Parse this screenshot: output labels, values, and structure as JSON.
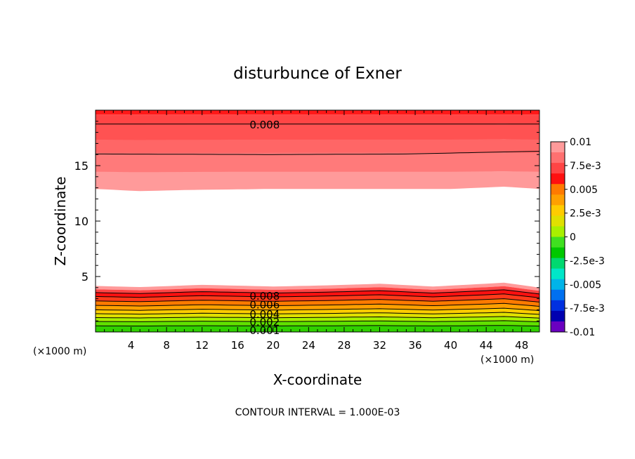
{
  "title": "disturbunce of Exner",
  "footer": "CONTOUR INTERVAL = 1.000E-03",
  "chart_data": {
    "type": "heatmap",
    "title": "disturbunce of Exner",
    "xlabel": "X-coordinate",
    "ylabel": "Z-coordinate",
    "x_unit_left": "(×1000 m)",
    "x_unit_right": "(×1000 m)",
    "xlim": [
      0,
      50
    ],
    "ylim": [
      0,
      20
    ],
    "xticks": [
      4,
      8,
      12,
      16,
      20,
      24,
      28,
      32,
      36,
      40,
      44,
      48
    ],
    "yticks": [
      5,
      10,
      15
    ],
    "contour_interval": 0.001,
    "upper_band": {
      "top_z": 19.6,
      "base_z_profile": [
        [
          0,
          12.9
        ],
        [
          5,
          12.7
        ],
        [
          10,
          12.8
        ],
        [
          20,
          12.9
        ],
        [
          30,
          12.9
        ],
        [
          40,
          12.9
        ],
        [
          46,
          13.1
        ],
        [
          50,
          12.9
        ]
      ],
      "top_value": 0.0095
    },
    "lower_band": {
      "top_z_profile": [
        [
          0,
          4.15
        ],
        [
          5,
          4.05
        ],
        [
          12,
          4.25
        ],
        [
          20,
          4.1
        ],
        [
          26,
          4.2
        ],
        [
          32,
          4.35
        ],
        [
          38,
          4.1
        ],
        [
          44,
          4.35
        ],
        [
          46,
          4.45
        ],
        [
          50,
          4.0
        ]
      ],
      "bottom_value": 0.0005
    },
    "contour_labels": [
      {
        "x": 20,
        "z": 18.75,
        "text": "0.008"
      },
      {
        "x": 20,
        "z": 3.3,
        "text": "0.008"
      },
      {
        "x": 20,
        "z": 2.5,
        "text": "0.006"
      },
      {
        "x": 20,
        "z": 1.65,
        "text": "0.004"
      },
      {
        "x": 20,
        "z": 0.95,
        "text": "0.002"
      },
      {
        "x": 20,
        "z": 0.2,
        "text": "0.001"
      }
    ],
    "colorbar": {
      "min": -0.01,
      "max": 0.01,
      "labels": [
        "0.01",
        "7.5e-3",
        "0.005",
        "2.5e-3",
        "0",
        "-2.5e-3",
        "-0.005",
        "-7.5e-3",
        "-0.01"
      ],
      "colors_top_to_bottom": [
        "#ff9a9a",
        "#ff7070",
        "#ff4545",
        "#ff1010",
        "#ff7a00",
        "#ffa000",
        "#ffcc00",
        "#e0e000",
        "#a8f000",
        "#40e020",
        "#00c800",
        "#00d870",
        "#00e6c8",
        "#00b4e8",
        "#0070f0",
        "#0030e0",
        "#0000b0",
        "#6a00c0"
      ]
    }
  }
}
